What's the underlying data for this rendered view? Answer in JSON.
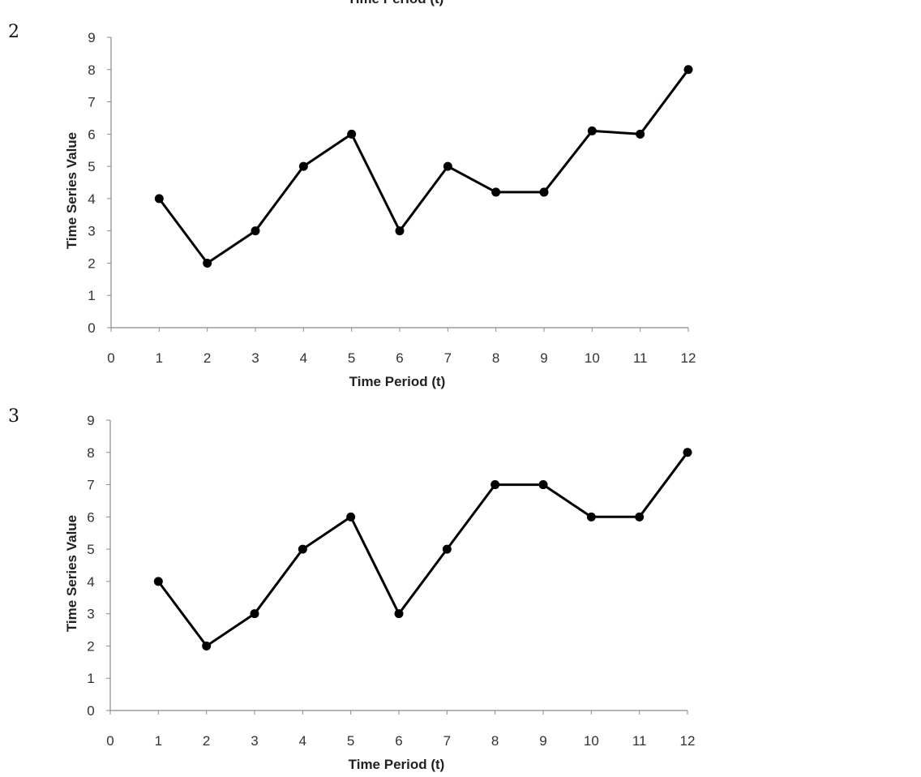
{
  "page": {
    "top_cut_label": "Time Period (t)"
  },
  "chart_data": [
    {
      "type": "line",
      "label": "2",
      "xlabel": "Time Period (t)",
      "ylabel": "Time Series Value",
      "xlim": [
        0,
        12
      ],
      "ylim": [
        0,
        9
      ],
      "x_ticks": [
        "0",
        "1",
        "2",
        "3",
        "4",
        "5",
        "6",
        "7",
        "8",
        "9",
        "10",
        "11",
        "12"
      ],
      "y_ticks": [
        "0",
        "1",
        "2",
        "3",
        "4",
        "5",
        "6",
        "7",
        "8",
        "9"
      ],
      "grid": false,
      "series": [
        {
          "x": [
            1,
            2,
            3,
            4,
            5,
            6,
            7,
            8,
            9,
            10,
            11,
            12
          ],
          "values": [
            4,
            2,
            3,
            5,
            6,
            3,
            5,
            4.2,
            4.2,
            6.1,
            6,
            8
          ]
        }
      ]
    },
    {
      "type": "line",
      "label": "3",
      "xlabel": "Time Period (t)",
      "ylabel": "Time Series Value",
      "xlim": [
        0,
        12
      ],
      "ylim": [
        0,
        9
      ],
      "x_ticks": [
        "0",
        "1",
        "2",
        "3",
        "4",
        "5",
        "6",
        "7",
        "8",
        "9",
        "10",
        "11",
        "12"
      ],
      "y_ticks": [
        "0",
        "1",
        "2",
        "3",
        "4",
        "5",
        "6",
        "7",
        "8",
        "9"
      ],
      "grid": false,
      "series": [
        {
          "x": [
            1,
            2,
            3,
            4,
            5,
            6,
            7,
            8,
            9,
            10,
            11,
            12
          ],
          "values": [
            4,
            2,
            3,
            5,
            6,
            3,
            5,
            7,
            7,
            6,
            6,
            8
          ]
        }
      ]
    }
  ]
}
